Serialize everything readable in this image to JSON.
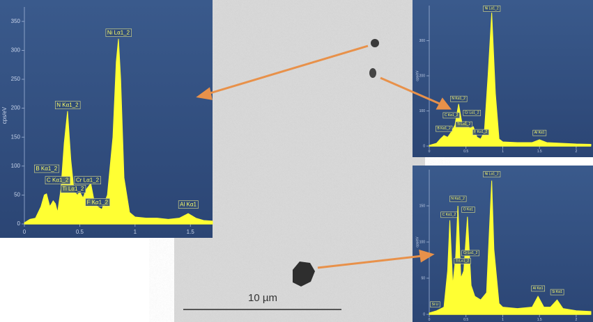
{
  "chart_data": [
    {
      "type": "area",
      "ylabel": "cps/eV",
      "color": "#ffff33",
      "x": [
        0,
        0.05,
        0.1,
        0.15,
        0.18,
        0.2,
        0.23,
        0.26,
        0.28,
        0.3,
        0.33,
        0.36,
        0.39,
        0.42,
        0.45,
        0.48,
        0.5,
        0.53,
        0.56,
        0.6,
        0.63,
        0.66,
        0.7,
        0.75,
        0.8,
        0.83,
        0.85,
        0.87,
        0.9,
        0.95,
        1.0,
        1.1,
        1.2,
        1.3,
        1.4,
        1.48,
        1.55,
        1.62,
        1.7
      ],
      "values": [
        2,
        8,
        10,
        30,
        50,
        52,
        30,
        40,
        35,
        20,
        60,
        140,
        195,
        110,
        55,
        50,
        55,
        45,
        60,
        70,
        40,
        30,
        25,
        50,
        150,
        280,
        320,
        250,
        80,
        20,
        12,
        10,
        10,
        8,
        10,
        18,
        10,
        6,
        5
      ],
      "xlim": [
        0,
        1.7
      ],
      "ylim": [
        0,
        375
      ],
      "xticks": [
        0,
        0.5,
        1,
        1.5
      ],
      "yticks": [
        0,
        50,
        100,
        150,
        200,
        250,
        300,
        350
      ],
      "annotations": [
        {
          "text": "B Kα1_2",
          "x": 0.2,
          "y": 95
        },
        {
          "text": "C Kα1_2",
          "x": 0.3,
          "y": 75
        },
        {
          "text": "Ti Lα1_2",
          "x": 0.44,
          "y": 60
        },
        {
          "text": "Cr Lα1_2",
          "x": 0.57,
          "y": 75
        },
        {
          "text": "F Kα1_2",
          "x": 0.66,
          "y": 37
        },
        {
          "text": "N Kα1_2",
          "x": 0.39,
          "y": 205
        },
        {
          "text": "Ni Lα1_2",
          "x": 0.85,
          "y": 330
        },
        {
          "text": "Al Kα1",
          "x": 1.48,
          "y": 33
        }
      ]
    },
    {
      "type": "area",
      "ylabel": "cps/eV",
      "color": "#ffff33",
      "x": [
        0,
        0.1,
        0.15,
        0.2,
        0.25,
        0.3,
        0.35,
        0.4,
        0.45,
        0.5,
        0.55,
        0.6,
        0.65,
        0.7,
        0.75,
        0.8,
        0.85,
        0.9,
        0.95,
        1.0,
        1.2,
        1.4,
        1.5,
        1.6,
        1.8,
        2.0,
        2.2
      ],
      "values": [
        2,
        8,
        20,
        30,
        25,
        40,
        60,
        120,
        60,
        70,
        50,
        55,
        25,
        20,
        40,
        200,
        380,
        150,
        20,
        12,
        10,
        10,
        18,
        10,
        8,
        6,
        5
      ],
      "xlim": [
        0,
        2.2
      ],
      "ylim": [
        0,
        400
      ],
      "xticks": [
        0,
        0.5,
        1,
        1.5,
        2
      ],
      "yticks": [
        0,
        100,
        200,
        300
      ],
      "annotations": [
        {
          "text": "Ni Lα1_2",
          "x": 0.85,
          "y": 392
        },
        {
          "text": "N Kα1_2",
          "x": 0.4,
          "y": 135
        },
        {
          "text": "C Kα1_2",
          "x": 0.3,
          "y": 88
        },
        {
          "text": "Cr Lα1_2",
          "x": 0.58,
          "y": 95
        },
        {
          "text": "Ti Lα1_2",
          "x": 0.47,
          "y": 62
        },
        {
          "text": "B Kα1_2",
          "x": 0.2,
          "y": 50
        },
        {
          "text": "F Kα1_2",
          "x": 0.7,
          "y": 40
        },
        {
          "text": "Al Kα1",
          "x": 1.5,
          "y": 38
        }
      ]
    },
    {
      "type": "area",
      "ylabel": "cps/eV",
      "color": "#ffff33",
      "x": [
        0,
        0.1,
        0.2,
        0.25,
        0.28,
        0.32,
        0.36,
        0.39,
        0.43,
        0.47,
        0.52,
        0.57,
        0.62,
        0.7,
        0.78,
        0.82,
        0.85,
        0.88,
        0.95,
        1.0,
        1.2,
        1.4,
        1.48,
        1.56,
        1.65,
        1.74,
        1.82,
        2.0,
        2.2
      ],
      "values": [
        2,
        5,
        10,
        60,
        130,
        40,
        80,
        150,
        50,
        60,
        135,
        40,
        25,
        20,
        30,
        120,
        185,
        90,
        15,
        10,
        8,
        10,
        25,
        10,
        10,
        20,
        8,
        5,
        4
      ],
      "xlim": [
        0,
        2.2
      ],
      "ylim": [
        0,
        200
      ],
      "xticks": [
        0,
        0.5,
        1,
        1.5,
        2
      ],
      "yticks": [
        0,
        50,
        100,
        150
      ],
      "annotations": [
        {
          "text": "Si Ll",
          "x": 0.08,
          "y": 14
        },
        {
          "text": "Ni Lα1_2",
          "x": 0.85,
          "y": 194
        },
        {
          "text": "N Kα1_2",
          "x": 0.39,
          "y": 160
        },
        {
          "text": "C Kα1_2",
          "x": 0.27,
          "y": 138
        },
        {
          "text": "O Kα1",
          "x": 0.53,
          "y": 145
        },
        {
          "text": "Cr Lα1_2",
          "x": 0.56,
          "y": 85
        },
        {
          "text": "Ti Lα1_2",
          "x": 0.45,
          "y": 74
        },
        {
          "text": "Al Kα1",
          "x": 1.48,
          "y": 36
        },
        {
          "text": "Si Kα1",
          "x": 1.74,
          "y": 31
        }
      ]
    }
  ],
  "micrograph": {
    "scale_bar": "10 µm"
  }
}
